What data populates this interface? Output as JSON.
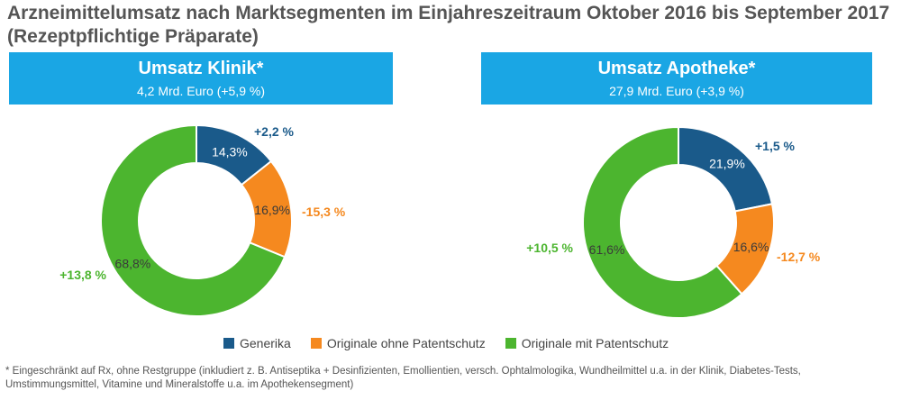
{
  "title": "Arzneimittelumsatz nach Marktsegmenten im Einjahreszeitraum Oktober 2016 bis September 2017",
  "subtitle": "(Rezeptpflichtige Präparate)",
  "panels": {
    "left": {
      "title": "Umsatz Klinik*",
      "subtitle": "4,2 Mrd. Euro (+5,9 %)"
    },
    "right": {
      "title": "Umsatz Apotheke*",
      "subtitle": "27,9 Mrd. Euro (+3,9 %)"
    }
  },
  "colors": {
    "header": "#1aa6e4",
    "generika": "#1a5a8a",
    "ohne": "#f5891f",
    "mit": "#4cb52f"
  },
  "chart_data": [
    {
      "type": "pie",
      "title": "Umsatz Klinik*",
      "categories": [
        "Generika",
        "Originale ohne Patentschutz",
        "Originale mit Patentschutz"
      ],
      "values": [
        14.3,
        16.9,
        68.8
      ],
      "value_labels": [
        "14,3%",
        "16,9%",
        "68,8%"
      ],
      "change_labels": [
        "+2,2 %",
        "-15,3 %",
        "+13,8 %"
      ]
    },
    {
      "type": "pie",
      "title": "Umsatz Apotheke*",
      "categories": [
        "Generika",
        "Originale ohne Patentschutz",
        "Originale mit Patentschutz"
      ],
      "values": [
        21.9,
        16.6,
        61.6
      ],
      "value_labels": [
        "21,9%",
        "16,6%",
        "61,6%"
      ],
      "change_labels": [
        "+1,5 %",
        "-12,7 %",
        "+10,5 %"
      ]
    }
  ],
  "legend": [
    {
      "label": "Generika",
      "color": "#1a5a8a"
    },
    {
      "label": "Originale ohne Patentschutz",
      "color": "#f5891f"
    },
    {
      "label": "Originale mit Patentschutz",
      "color": "#4cb52f"
    }
  ],
  "footnote": "* Eingeschränkt auf Rx, ohne Restgruppe (inkludiert z. B. Antiseptika + Desinfizienten, Emollientien, versch. Ophtalmologika, Wundheilmittel u.a. in der Klinik, Diabetes-Tests, Umstimmungsmittel, Vitamine und Mineralstoffe u.a. im Apothekensegment)"
}
